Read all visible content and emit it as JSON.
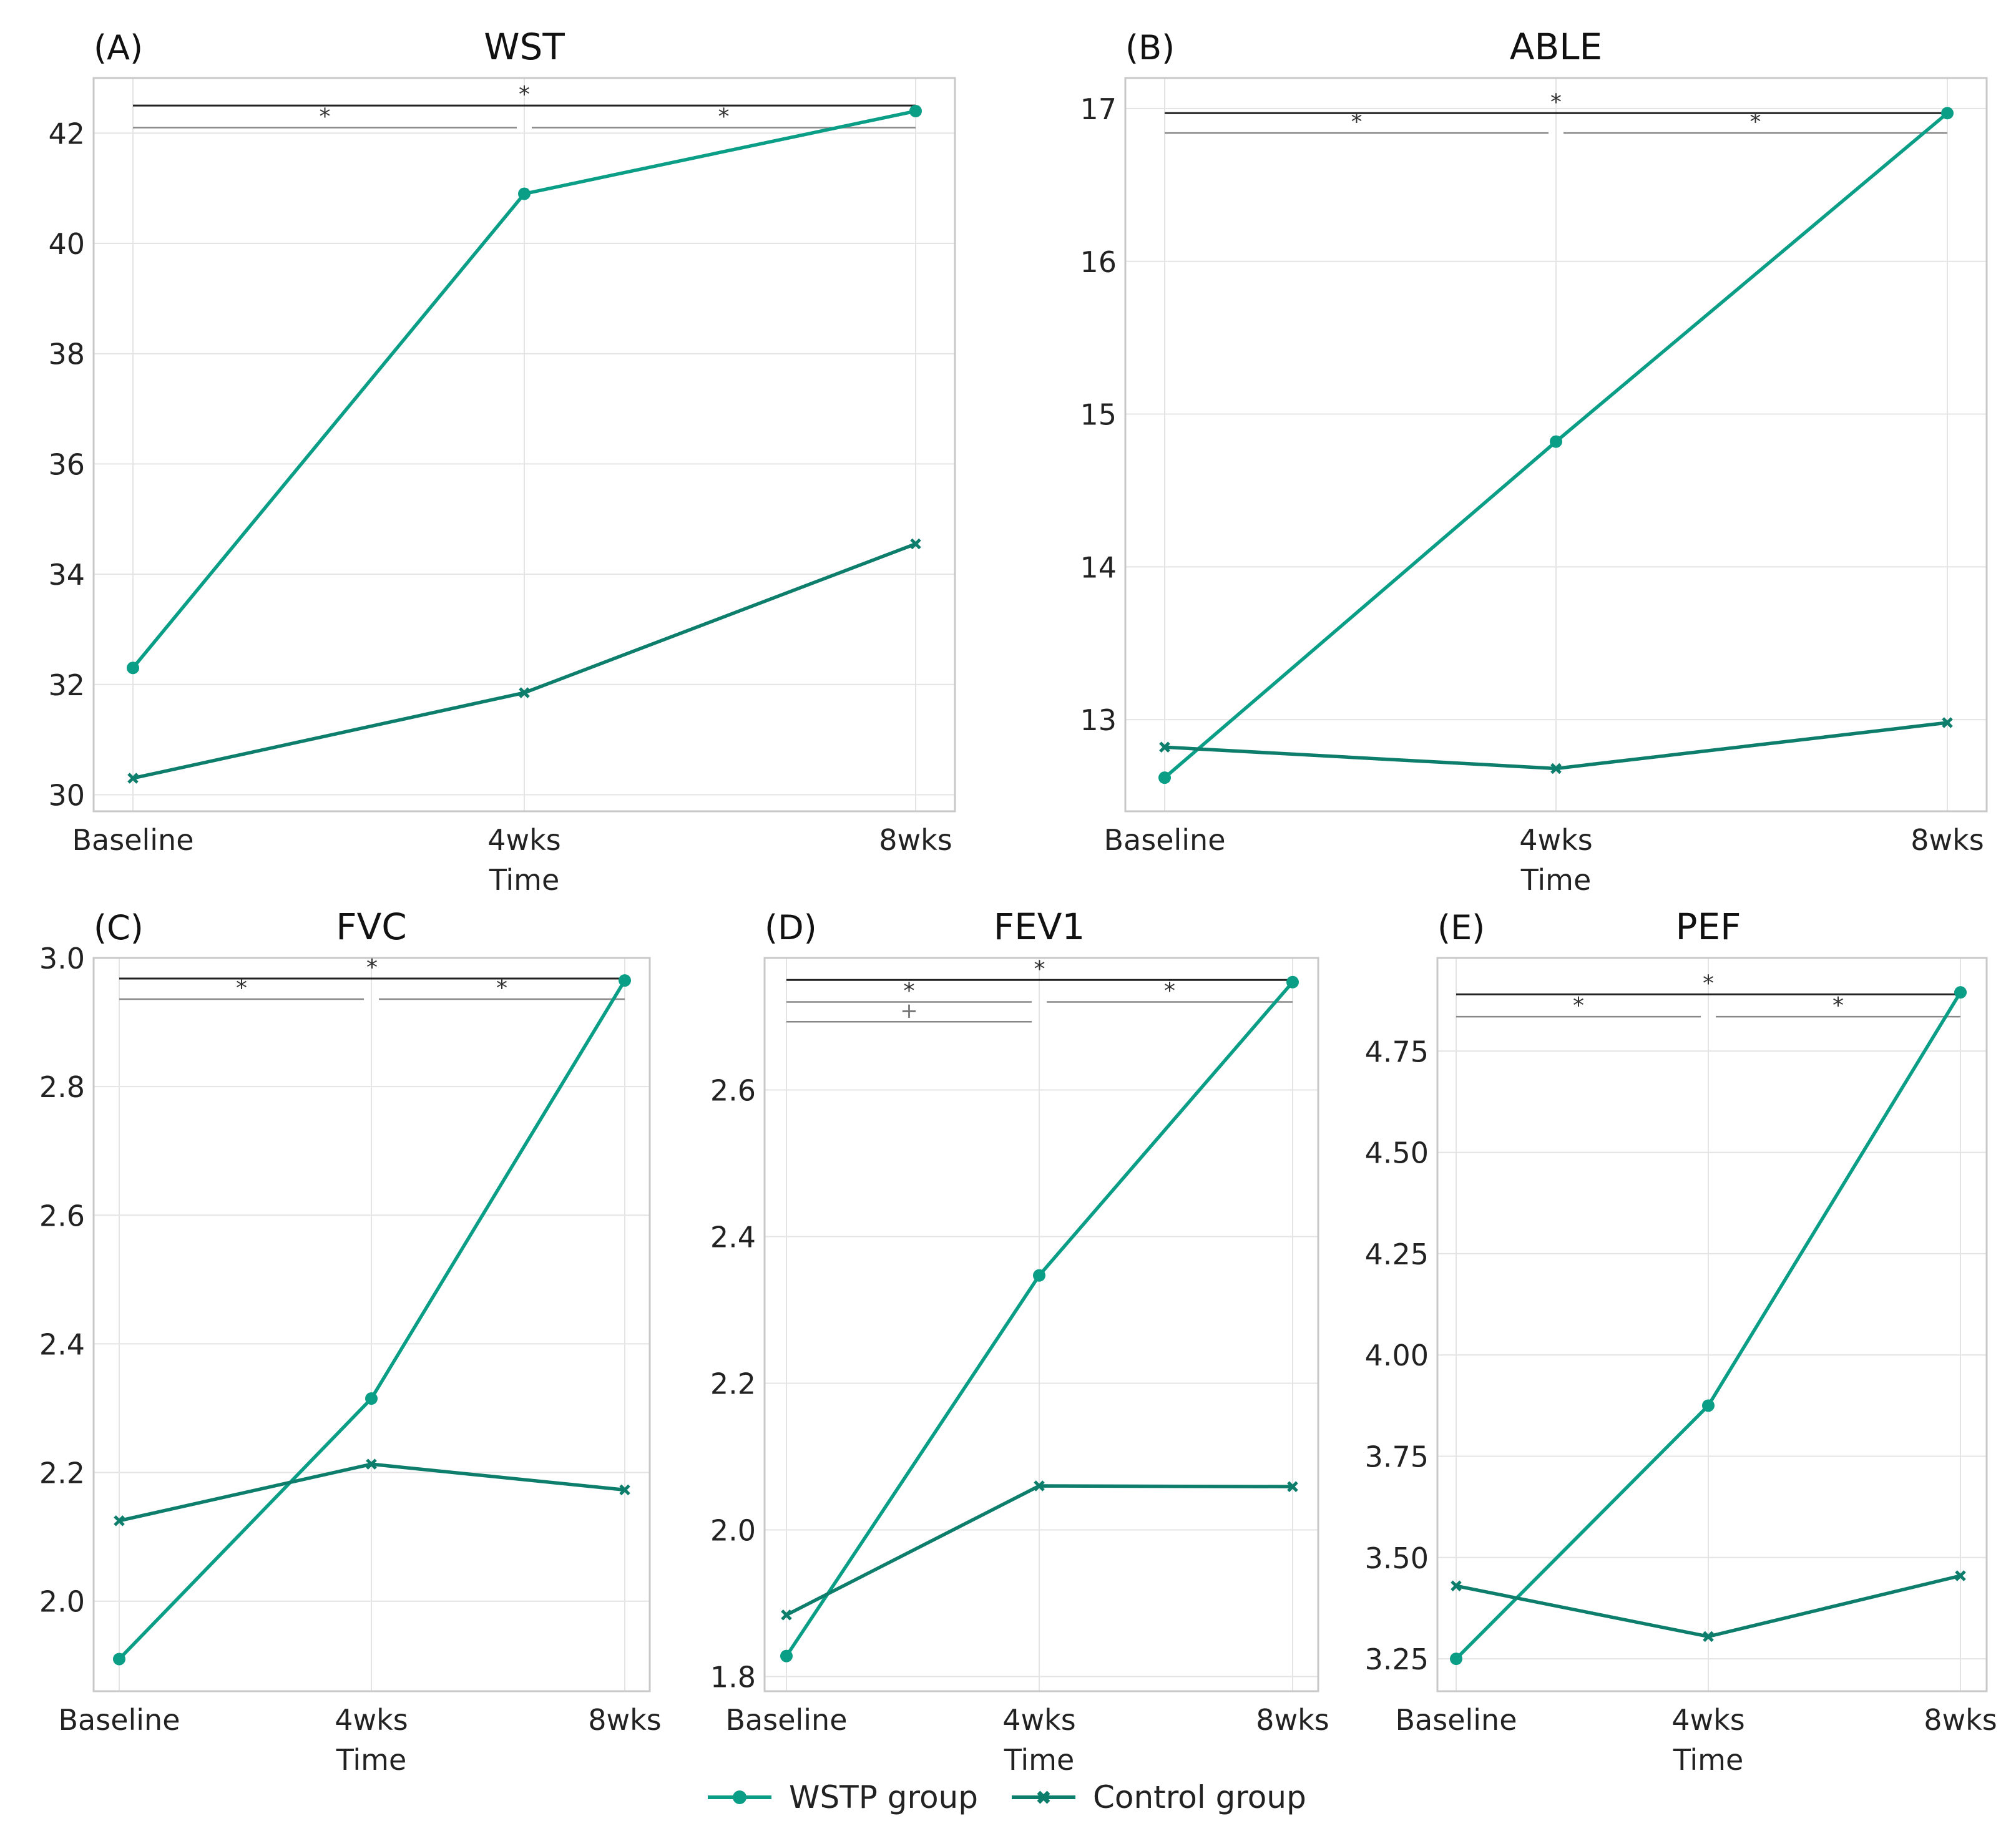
{
  "colors": {
    "wstp": "#0a9e86",
    "control": "#0d7d6c",
    "grid": "#e4e4e4",
    "frame": "#c8c8c8",
    "sig_dark": "#222222",
    "sig_light": "#888888"
  },
  "legend": {
    "wstp_label": "WSTP group",
    "control_label": "Control group"
  },
  "chart_data": [
    {
      "type": "line",
      "panel": "(A)",
      "title": "WST",
      "xlabel": "Time",
      "ylabel": "",
      "categories": [
        "Baseline",
        "4wks",
        "8wks"
      ],
      "ylim": [
        29.7,
        43.0
      ],
      "yticks": [
        30,
        32,
        34,
        36,
        38,
        40,
        42
      ],
      "ytick_labels": [
        "30",
        "32",
        "34",
        "36",
        "38",
        "40",
        "42"
      ],
      "series": [
        {
          "name": "WSTP group",
          "values": [
            32.3,
            40.9,
            42.4
          ]
        },
        {
          "name": "Control group",
          "values": [
            30.3,
            31.85,
            34.55
          ]
        }
      ],
      "significance": [
        {
          "from": 0,
          "to": 2,
          "y": 42.5,
          "label": "*"
        },
        {
          "from": 0,
          "to": 1,
          "y": 42.1,
          "label": "*"
        },
        {
          "from": 1,
          "to": 2,
          "y": 42.1,
          "label": "*"
        }
      ]
    },
    {
      "type": "line",
      "panel": "(B)",
      "title": "ABLE",
      "xlabel": "Time",
      "ylabel": "",
      "categories": [
        "Baseline",
        "4wks",
        "8wks"
      ],
      "ylim": [
        12.4,
        17.2
      ],
      "yticks": [
        13,
        14,
        15,
        16,
        17
      ],
      "ytick_labels": [
        "13",
        "14",
        "15",
        "16",
        "17"
      ],
      "series": [
        {
          "name": "WSTP group",
          "values": [
            12.62,
            14.82,
            16.97
          ]
        },
        {
          "name": "Control group",
          "values": [
            12.82,
            12.68,
            12.98
          ]
        }
      ],
      "significance": [
        {
          "from": 0,
          "to": 2,
          "y": 16.97,
          "label": "*"
        },
        {
          "from": 0,
          "to": 1,
          "y": 16.84,
          "label": "*"
        },
        {
          "from": 1,
          "to": 2,
          "y": 16.84,
          "label": "*"
        }
      ]
    },
    {
      "type": "line",
      "panel": "(C)",
      "title": "FVC",
      "xlabel": "Time",
      "ylabel": "",
      "categories": [
        "Baseline",
        "4wks",
        "8wks"
      ],
      "ylim": [
        1.86,
        3.0
      ],
      "yticks": [
        2.0,
        2.2,
        2.4,
        2.6,
        2.8,
        3.0
      ],
      "ytick_labels": [
        "2.0",
        "2.2",
        "2.4",
        "2.6",
        "2.8",
        "3.0"
      ],
      "series": [
        {
          "name": "WSTP group",
          "values": [
            1.91,
            2.315,
            2.965
          ]
        },
        {
          "name": "Control group",
          "values": [
            2.125,
            2.213,
            2.173
          ]
        }
      ],
      "significance": [
        {
          "from": 0,
          "to": 2,
          "y": 2.968,
          "label": "*"
        },
        {
          "from": 0,
          "to": 1,
          "y": 2.936,
          "label": "*"
        },
        {
          "from": 1,
          "to": 2,
          "y": 2.936,
          "label": "*"
        }
      ]
    },
    {
      "type": "line",
      "panel": "(D)",
      "title": "FEV1",
      "xlabel": "Time",
      "ylabel": "",
      "categories": [
        "Baseline",
        "4wks",
        "8wks"
      ],
      "ylim": [
        1.78,
        2.78
      ],
      "yticks": [
        1.8,
        2.0,
        2.2,
        2.4,
        2.6
      ],
      "ytick_labels": [
        "1.8",
        "2.0",
        "2.2",
        "2.4",
        "2.6"
      ],
      "series": [
        {
          "name": "WSTP group",
          "values": [
            1.828,
            2.347,
            2.747
          ]
        },
        {
          "name": "Control group",
          "values": [
            1.884,
            2.06,
            2.059
          ]
        }
      ],
      "significance": [
        {
          "from": 0,
          "to": 2,
          "y": 2.75,
          "label": "*"
        },
        {
          "from": 0,
          "to": 1,
          "y": 2.72,
          "label": "*"
        },
        {
          "from": 1,
          "to": 2,
          "y": 2.72,
          "label": "*"
        },
        {
          "from": 0,
          "to": 1,
          "y": 2.693,
          "label": "+"
        }
      ]
    },
    {
      "type": "line",
      "panel": "(E)",
      "title": "PEF",
      "xlabel": "Time",
      "ylabel": "",
      "categories": [
        "Baseline",
        "4wks",
        "8wks"
      ],
      "ylim": [
        3.17,
        4.98
      ],
      "yticks": [
        3.25,
        3.5,
        3.75,
        4.0,
        4.25,
        4.5,
        4.75
      ],
      "ytick_labels": [
        "3.25",
        "3.50",
        "3.75",
        "4.00",
        "4.25",
        "4.50",
        "4.75"
      ],
      "series": [
        {
          "name": "WSTP group",
          "values": [
            3.25,
            3.875,
            4.895
          ]
        },
        {
          "name": "Control group",
          "values": [
            3.43,
            3.305,
            3.455
          ]
        }
      ],
      "significance": [
        {
          "from": 0,
          "to": 2,
          "y": 4.89,
          "label": "*"
        },
        {
          "from": 0,
          "to": 1,
          "y": 4.835,
          "label": "*"
        },
        {
          "from": 1,
          "to": 2,
          "y": 4.835,
          "label": "*"
        }
      ]
    }
  ]
}
